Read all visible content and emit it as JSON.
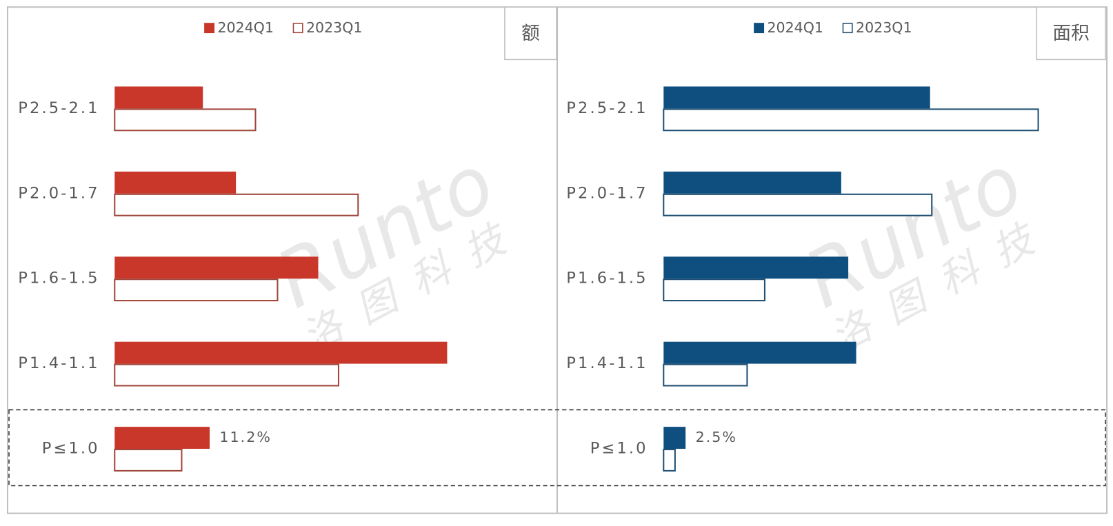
{
  "chart_data": [
    {
      "type": "bar",
      "title": "额",
      "watermark": [
        "Runto",
        "洛图科技"
      ],
      "categories": [
        "P2.5-2.1",
        "P2.0-1.7",
        "P1.6-1.5",
        "P1.4-1.1",
        "P≤1.0"
      ],
      "series": [
        {
          "name": "2024Q1",
          "color": "#c8372a",
          "style": "solid",
          "values": [
            10.4,
            14.3,
            24.0,
            39.2,
            11.2
          ],
          "value_labels": [
            null,
            null,
            null,
            null,
            "11.2%"
          ]
        },
        {
          "name": "2023Q1",
          "color": "#a0463c",
          "style": "outline",
          "values": [
            16.6,
            28.7,
            19.2,
            26.4,
            7.9
          ]
        }
      ]
    },
    {
      "type": "bar",
      "title": "面积",
      "watermark": [
        "Runto",
        "洛图科技"
      ],
      "categories": [
        "P2.5-2.1",
        "P2.0-1.7",
        "P1.6-1.5",
        "P1.4-1.1",
        "P≤1.0"
      ],
      "series": [
        {
          "name": "2024Q1",
          "color": "#0f4f80",
          "style": "solid",
          "values": [
            30.3,
            20.2,
            21.0,
            21.9,
            2.5
          ],
          "value_labels": [
            null,
            null,
            null,
            null,
            "2.5%"
          ]
        },
        {
          "name": "2023Q1",
          "color": "#1f4f73",
          "style": "outline",
          "values": [
            42.6,
            30.5,
            11.5,
            9.5,
            1.3
          ]
        }
      ]
    }
  ]
}
